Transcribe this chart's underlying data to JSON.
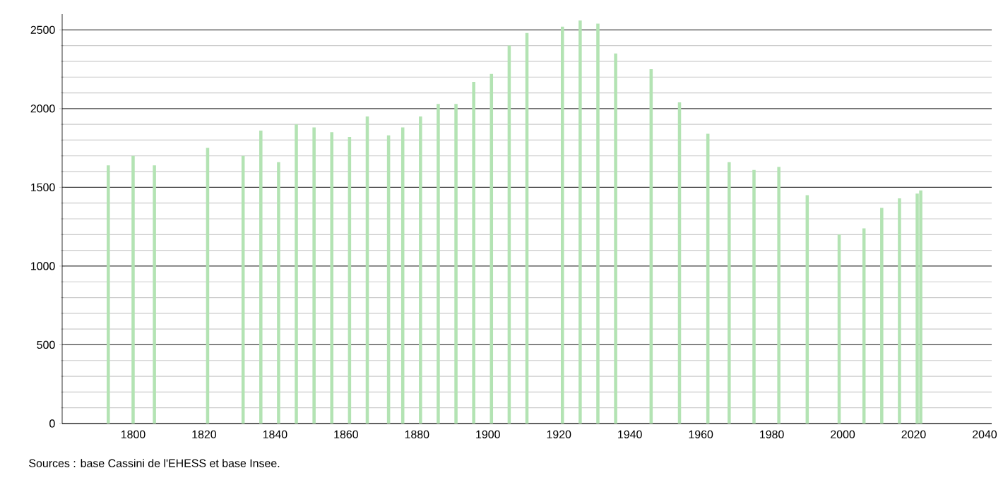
{
  "chart_data": {
    "type": "bar",
    "x": [
      1793,
      1800,
      1806,
      1821,
      1831,
      1836,
      1841,
      1846,
      1851,
      1856,
      1861,
      1866,
      1872,
      1876,
      1881,
      1886,
      1891,
      1896,
      1901,
      1906,
      1911,
      1921,
      1926,
      1931,
      1936,
      1946,
      1954,
      1962,
      1968,
      1975,
      1982,
      1990,
      1999,
      2006,
      2011,
      2016,
      2021,
      2022
    ],
    "values": [
      1640,
      1700,
      1640,
      1750,
      1700,
      1860,
      1660,
      1900,
      1880,
      1850,
      1820,
      1950,
      1830,
      1880,
      1950,
      2030,
      2030,
      2170,
      2220,
      2400,
      2480,
      2520,
      2560,
      2540,
      2350,
      2250,
      2040,
      1840,
      1660,
      1610,
      1630,
      1450,
      1200,
      1240,
      1370,
      1430,
      1460,
      1480
    ],
    "color": "#b3e3b3",
    "xlim": [
      1780,
      2042
    ],
    "xticks": [
      1800,
      1820,
      1840,
      1860,
      1880,
      1900,
      1920,
      1940,
      1960,
      1980,
      2000,
      2020,
      2040
    ],
    "ylim": [
      0,
      2600
    ],
    "yticks": [
      0,
      500,
      1000,
      1500,
      2000,
      2500
    ],
    "grid": "y",
    "annotations": [
      "Sources : base Cassini de l'EHESS et base Insee."
    ]
  }
}
